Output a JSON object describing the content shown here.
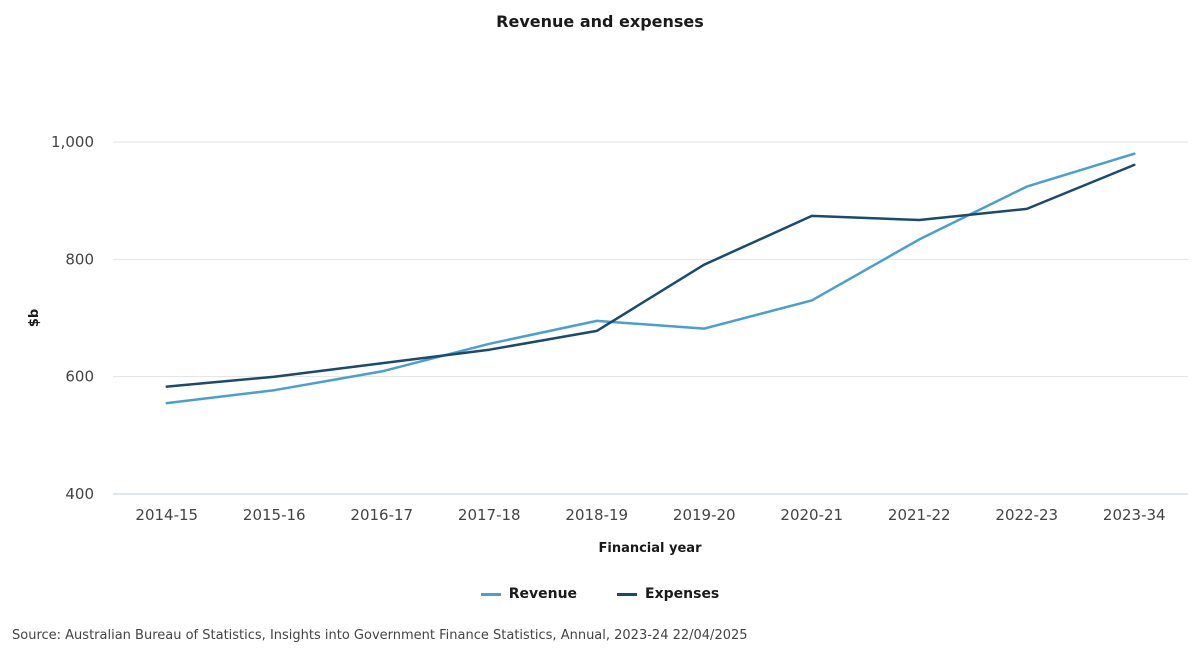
{
  "chart_data": {
    "type": "line",
    "title": "Revenue and expenses",
    "xlabel": "Financial year",
    "ylabel": "$b",
    "ylim": [
      400,
      1000
    ],
    "yticks": [
      400,
      600,
      800,
      1000
    ],
    "ytick_labels": [
      "400",
      "600",
      "800",
      "1,000"
    ],
    "grid": true,
    "legend_position": "bottom-center",
    "categories": [
      "2014-15",
      "2015-16",
      "2016-17",
      "2017-18",
      "2018-19",
      "2019-20",
      "2020-21",
      "2021-22",
      "2022-23",
      "2023-34"
    ],
    "series": [
      {
        "name": "Revenue",
        "color": "#4a9fd0",
        "values": [
          555,
          577,
          609,
          656,
          695,
          682,
          730,
          834,
          924,
          980
        ]
      },
      {
        "name": "Expenses",
        "color": "#1a4a6e",
        "values": [
          583,
          600,
          623,
          646,
          678,
          791,
          874,
          867,
          886,
          961
        ]
      }
    ]
  },
  "source": "Source: Australian Bureau of Statistics, Insights into Government Finance Statistics, Annual, 2023-24 22/04/2025"
}
